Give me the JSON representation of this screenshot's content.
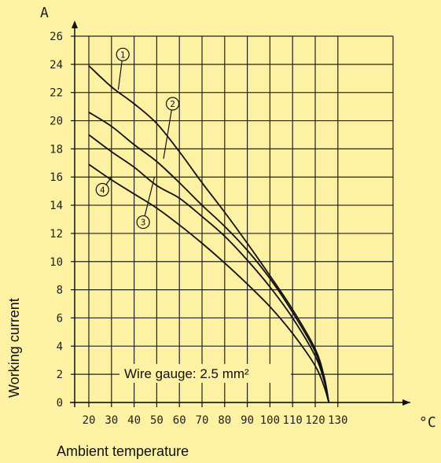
{
  "chart_data": {
    "type": "line",
    "y_unit": "A",
    "x_unit": "°C",
    "xlabel": "Ambient temperature",
    "ylabel": "Working current",
    "annotation": "Wire gauge: 2.5 mm²",
    "xlim": [
      15,
      128
    ],
    "ylim": [
      0,
      26
    ],
    "x_ticks": [
      "20",
      "30",
      "40",
      "50",
      "60",
      "70",
      "80",
      "90",
      "100",
      "110",
      "120",
      "130"
    ],
    "y_ticks": [
      "0",
      "2",
      "4",
      "6",
      "8",
      "10",
      "12",
      "14",
      "16",
      "18",
      "20",
      "22",
      "24",
      "26"
    ],
    "grid": true,
    "series": [
      {
        "name": "1",
        "x": [
          20,
          30,
          40,
          50,
          60,
          70,
          80,
          90,
          100,
          110,
          120,
          124,
          126
        ],
        "y": [
          23.9,
          22.4,
          21.2,
          19.8,
          17.8,
          15.6,
          13.5,
          11.3,
          9.0,
          6.6,
          3.8,
          1.8,
          0
        ]
      },
      {
        "name": "2",
        "x": [
          20,
          30,
          40,
          50,
          60,
          70,
          80,
          90,
          100,
          110,
          120,
          124,
          126
        ],
        "y": [
          20.6,
          19.6,
          18.3,
          17.1,
          15.6,
          14.0,
          12.5,
          10.8,
          8.8,
          6.4,
          3.6,
          1.6,
          0
        ]
      },
      {
        "name": "3",
        "x": [
          20,
          30,
          40,
          50,
          60,
          70,
          80,
          90,
          100,
          110,
          120,
          124,
          126
        ],
        "y": [
          19.0,
          17.8,
          16.7,
          15.4,
          14.5,
          13.2,
          11.8,
          10.1,
          8.2,
          6.0,
          3.3,
          1.5,
          0
        ]
      },
      {
        "name": "4",
        "x": [
          20,
          30,
          40,
          50,
          60,
          70,
          80,
          90,
          100,
          110,
          120,
          124,
          126
        ],
        "y": [
          16.9,
          15.8,
          14.8,
          13.8,
          12.6,
          11.3,
          9.9,
          8.4,
          6.8,
          4.9,
          2.6,
          1.1,
          0
        ]
      }
    ],
    "colors": {
      "background": "#fdf1a3",
      "lines": "#111111"
    }
  }
}
